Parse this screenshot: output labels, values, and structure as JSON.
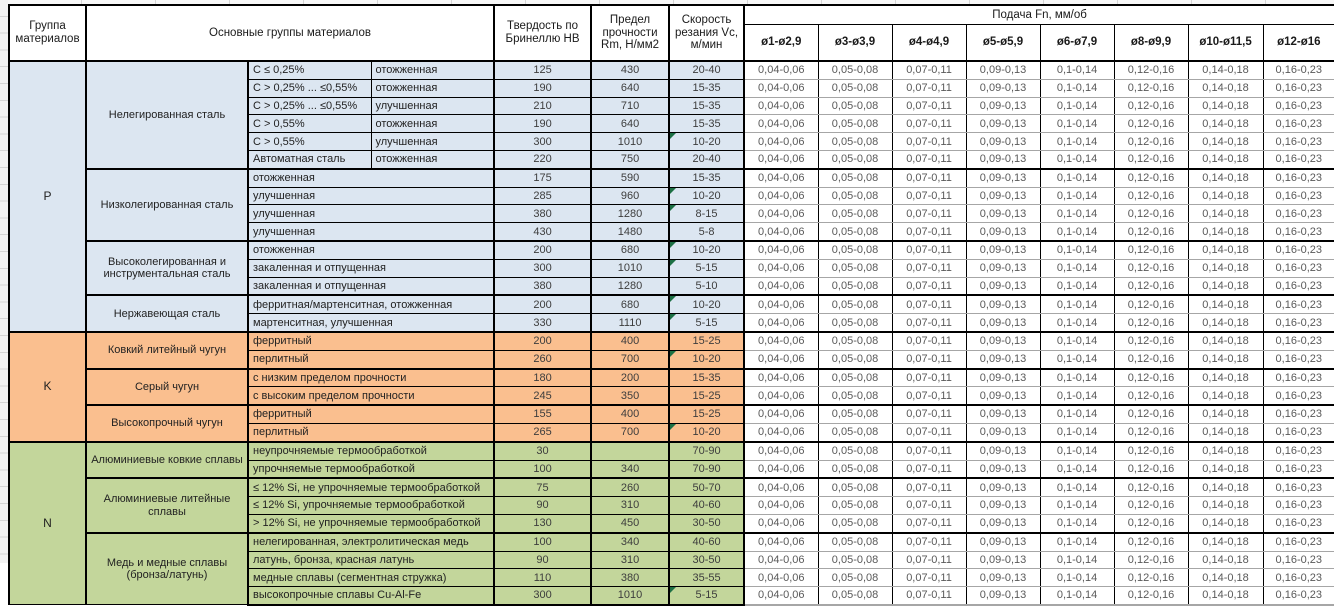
{
  "header": {
    "col_group": "Группа материалов",
    "col_material": "Основные группы материалов",
    "col_hb": "Твердость по Бринеллю НВ",
    "col_rm": "Предел прочности Rm, Н/мм2",
    "col_vc": "Скорость резания Vc, м/мин",
    "col_feed": "Подача Fn, мм/об",
    "diameters": [
      "ø1-ø2,9",
      "ø3-ø3,9",
      "ø4-ø4,9",
      "ø5-ø5,9",
      "ø6-ø7,9",
      "ø8-ø9,9",
      "ø10-ø11,5",
      "ø12-ø16"
    ]
  },
  "feed_values": [
    "0,04-0,06",
    "0,05-0,08",
    "0,07-0,11",
    "0,09-0,13",
    "0,1-0,14",
    "0,12-0,16",
    "0,14-0,18",
    "0,16-0,23"
  ],
  "colors": {
    "group_p": "#dce6f1",
    "group_k": "#fabf8f",
    "group_n": "#c3d69b",
    "error_indicator": "#1d7044"
  },
  "groups": [
    {
      "code": "P",
      "color": "#dce6f1",
      "subgroups": [
        {
          "name": "Нелегированная сталь",
          "rows": [
            {
              "d1": "С ≤ 0,25%",
              "d2": "отожженная",
              "hb": "125",
              "rm": "430",
              "vc": "20-40",
              "flag": false
            },
            {
              "d1": "С > 0,25% ... ≤0,55%",
              "d2": "отожженная",
              "hb": "190",
              "rm": "640",
              "vc": "15-35",
              "flag": false
            },
            {
              "d1": "С > 0,25% ... ≤0,55%",
              "d2": "улучшенная",
              "hb": "210",
              "rm": "710",
              "vc": "15-35",
              "flag": false
            },
            {
              "d1": "С > 0,55%",
              "d2": "отожженная",
              "hb": "190",
              "rm": "640",
              "vc": "15-35",
              "flag": false
            },
            {
              "d1": "С > 0,55%",
              "d2": "улучшенная",
              "hb": "300",
              "rm": "1010",
              "vc": "10-20",
              "flag": true
            },
            {
              "d1": "Автоматная сталь",
              "d2": "отожженная",
              "hb": "220",
              "rm": "750",
              "vc": "20-40",
              "flag": false
            }
          ]
        },
        {
          "name": "Низколегированная сталь",
          "rows": [
            {
              "d1": "отожженная",
              "d2": null,
              "hb": "175",
              "rm": "590",
              "vc": "15-35",
              "flag": false
            },
            {
              "d1": "улучшенная",
              "d2": null,
              "hb": "285",
              "rm": "960",
              "vc": "10-20",
              "flag": true
            },
            {
              "d1": "улучшенная",
              "d2": null,
              "hb": "380",
              "rm": "1280",
              "vc": "8-15",
              "flag": true
            },
            {
              "d1": "улучшенная",
              "d2": null,
              "hb": "430",
              "rm": "1480",
              "vc": "5-8",
              "flag": false
            }
          ]
        },
        {
          "name": "Высоколегированная и инструментальная сталь",
          "rows": [
            {
              "d1": "отожженная",
              "d2": null,
              "hb": "200",
              "rm": "680",
              "vc": "10-20",
              "flag": true
            },
            {
              "d1": "закаленная и отпущенная",
              "d2": null,
              "hb": "300",
              "rm": "1010",
              "vc": "5-15",
              "flag": true
            },
            {
              "d1": "закаленная и отпущенная",
              "d2": null,
              "hb": "380",
              "rm": "1280",
              "vc": "5-10",
              "flag": false
            }
          ]
        },
        {
          "name": "Нержавеющая сталь",
          "rows": [
            {
              "d1": "ферритная/мартенситная, отожженная",
              "d2": null,
              "hb": "200",
              "rm": "680",
              "vc": "10-20",
              "flag": true
            },
            {
              "d1": "мартенситная, улучшенная",
              "d2": null,
              "hb": "330",
              "rm": "1110",
              "vc": "5-15",
              "flag": true
            }
          ]
        }
      ]
    },
    {
      "code": "K",
      "color": "#fabf8f",
      "subgroups": [
        {
          "name": "Ковкий литейный чугун",
          "rows": [
            {
              "d1": "ферритный",
              "d2": null,
              "hb": "200",
              "rm": "400",
              "vc": "15-25",
              "flag": false
            },
            {
              "d1": "перлитный",
              "d2": null,
              "hb": "260",
              "rm": "700",
              "vc": "10-20",
              "flag": true
            }
          ]
        },
        {
          "name": "Серый чугун",
          "rows": [
            {
              "d1": "с низким пределом прочности",
              "d2": null,
              "hb": "180",
              "rm": "200",
              "vc": "15-35",
              "flag": false
            },
            {
              "d1": "с высоким пределом прочности",
              "d2": null,
              "hb": "245",
              "rm": "350",
              "vc": "15-25",
              "flag": false
            }
          ]
        },
        {
          "name": "Высокопрочный чугун",
          "rows": [
            {
              "d1": "ферритный",
              "d2": null,
              "hb": "155",
              "rm": "400",
              "vc": "15-25",
              "flag": false
            },
            {
              "d1": "перлитный",
              "d2": null,
              "hb": "265",
              "rm": "700",
              "vc": "10-20",
              "flag": true
            }
          ]
        }
      ]
    },
    {
      "code": "N",
      "color": "#c3d69b",
      "subgroups": [
        {
          "name": "Алюминиевые ковкие сплавы",
          "rows": [
            {
              "d1": "неупрочняемые термообработкой",
              "d2": null,
              "hb": "30",
              "rm": "",
              "vc": "70-90",
              "flag": false
            },
            {
              "d1": "упрочняемые термообработкой",
              "d2": null,
              "hb": "100",
              "rm": "340",
              "vc": "70-90",
              "flag": false
            }
          ]
        },
        {
          "name": "Алюминиевые литейные сплавы",
          "rows": [
            {
              "d1": "≤ 12% Si, не упрочняемые термообработкой",
              "d2": null,
              "hb": "75",
              "rm": "260",
              "vc": "50-70",
              "flag": false
            },
            {
              "d1": "≤ 12% Si, упрочняемые термообработкой",
              "d2": null,
              "hb": "90",
              "rm": "310",
              "vc": "40-60",
              "flag": false
            },
            {
              "d1": "> 12% Si, не упрочняемые термообработкой",
              "d2": null,
              "hb": "130",
              "rm": "450",
              "vc": "30-50",
              "flag": false
            }
          ]
        },
        {
          "name": "Медь и медные сплавы (бронза/латунь)",
          "rows": [
            {
              "d1": "нелегированная, электролитическая медь",
              "d2": null,
              "hb": "100",
              "rm": "340",
              "vc": "40-60",
              "flag": false
            },
            {
              "d1": "латунь, бронза, красная латунь",
              "d2": null,
              "hb": "90",
              "rm": "310",
              "vc": "30-50",
              "flag": false
            },
            {
              "d1": "медные сплавы (сегментная стружка)",
              "d2": null,
              "hb": "110",
              "rm": "380",
              "vc": "35-55",
              "flag": false
            },
            {
              "d1": "высокопрочные сплавы Cu-Al-Fe",
              "d2": null,
              "hb": "300",
              "rm": "1010",
              "vc": "5-15",
              "flag": true
            }
          ]
        }
      ]
    }
  ]
}
